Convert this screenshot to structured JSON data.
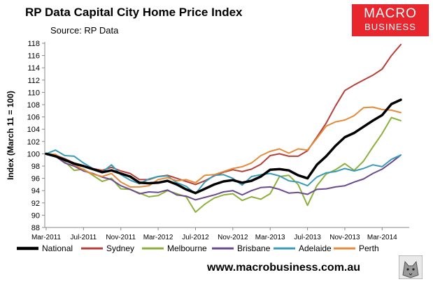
{
  "title": "RP Data Capital City Home Price Index",
  "subtitle": "Source: RP Data",
  "logo": {
    "line1": "MACRO",
    "line2": "BUSINESS",
    "color": "#e8262d"
  },
  "footer_url": "www.macrobusiness.com.au",
  "chart_data": {
    "type": "line",
    "ylabel": "Index (March 11 = 100)",
    "xlabel": "",
    "ylim": [
      88,
      118
    ],
    "yticks": [
      88,
      90,
      92,
      94,
      96,
      98,
      100,
      102,
      104,
      106,
      108,
      110,
      112,
      114,
      116,
      118
    ],
    "xlim": [
      "2011-03",
      "2014-05"
    ],
    "xticks": [
      "Mar-2011",
      "Jul-2011",
      "Nov-2011",
      "Mar-2012",
      "Jul-2012",
      "Nov-2012",
      "Mar-2013",
      "Jul-2013",
      "Nov-2013",
      "Mar-2014"
    ],
    "grid": false,
    "legend_position": "bottom",
    "x": [
      "2011-03",
      "2011-04",
      "2011-05",
      "2011-06",
      "2011-07",
      "2011-08",
      "2011-09",
      "2011-10",
      "2011-11",
      "2011-12",
      "2012-01",
      "2012-02",
      "2012-03",
      "2012-04",
      "2012-05",
      "2012-06",
      "2012-07",
      "2012-08",
      "2012-09",
      "2012-10",
      "2012-11",
      "2012-12",
      "2013-01",
      "2013-02",
      "2013-03",
      "2013-04",
      "2013-05",
      "2013-06",
      "2013-07",
      "2013-08",
      "2013-09",
      "2013-10",
      "2013-11",
      "2013-12",
      "2014-01",
      "2014-02",
      "2014-03",
      "2014-04",
      "2014-05"
    ],
    "series": [
      {
        "name": "National",
        "color": "#000000",
        "width": 3.5,
        "values": [
          100,
          99.6,
          99,
          98.4,
          98,
          97.5,
          97,
          97.3,
          96.8,
          96.3,
          95.3,
          95.2,
          95.3,
          95.6,
          95,
          94.2,
          93.6,
          94.3,
          95,
          95.5,
          95.7,
          95.3,
          95.6,
          96.3,
          97.4,
          97.5,
          97.3,
          96.5,
          96,
          98.2,
          99.6,
          101.3,
          102.7,
          103.4,
          104.4,
          105.4,
          106.3,
          108.1,
          108.8
        ]
      },
      {
        "name": "Sydney",
        "color": "#b5403b",
        "width": 2,
        "values": [
          100,
          99.8,
          99.2,
          98.5,
          98,
          97.6,
          97.3,
          97.8,
          97.2,
          96.8,
          95.8,
          95.8,
          96.3,
          96.5,
          96,
          95.5,
          95,
          95.6,
          96.4,
          97,
          97.4,
          97.1,
          97.5,
          98.3,
          99.7,
          100,
          99.6,
          99.6,
          100.5,
          102.7,
          105,
          107.8,
          110.3,
          111.2,
          112,
          112.8,
          113.8,
          116,
          117.8
        ]
      },
      {
        "name": "Melbourne",
        "color": "#8daf3c",
        "width": 2,
        "values": [
          100,
          99.8,
          98.7,
          97.3,
          97.5,
          96.5,
          95.5,
          96,
          94.3,
          94.2,
          93.6,
          93,
          93.2,
          94,
          93.5,
          93,
          90.5,
          91.8,
          92.8,
          93.3,
          93.5,
          92.4,
          93,
          92.6,
          93.5,
          96.3,
          96.5,
          95,
          91.6,
          94.8,
          96.7,
          97.4,
          98.4,
          97.3,
          98.8,
          101.1,
          103.3,
          105.9,
          105.4
        ]
      },
      {
        "name": "Brisbane",
        "color": "#6a4a8c",
        "width": 2,
        "values": [
          100,
          99.6,
          98.5,
          98,
          97.2,
          96.8,
          96.2,
          95.8,
          94.8,
          94.2,
          93.5,
          93.8,
          93.7,
          94.1,
          93.3,
          93.1,
          92.5,
          92.9,
          93.3,
          93.8,
          94,
          93.3,
          94,
          94.5,
          94.6,
          94.2,
          93.6,
          93.7,
          93.4,
          94.2,
          94.3,
          94.6,
          94.8,
          95.4,
          95.9,
          96.8,
          97.5,
          98.6,
          99.8
        ]
      },
      {
        "name": "Adelaide",
        "color": "#3a9bb8",
        "width": 2,
        "values": [
          100,
          100.6,
          99.7,
          99.6,
          98.5,
          97.6,
          97,
          98.2,
          96.6,
          95.7,
          95.1,
          95.9,
          96.3,
          96.4,
          95.3,
          94.7,
          93.5,
          95.4,
          96.5,
          96.6,
          96,
          94.9,
          96.3,
          96.6,
          96.8,
          96.4,
          95.6,
          95.4,
          94.8,
          96.2,
          96.9,
          97.1,
          97.6,
          97.2,
          97.6,
          98.2,
          97.9,
          99.1,
          99.8
        ]
      },
      {
        "name": "Perth",
        "color": "#e68a3b",
        "width": 2,
        "values": [
          100,
          99.9,
          99,
          98.2,
          97.4,
          96.7,
          96.3,
          96.8,
          95.4,
          94.6,
          94.6,
          94.8,
          95.8,
          96.1,
          95.6,
          95.8,
          95.3,
          96.5,
          96.6,
          97.1,
          97.6,
          97.9,
          98.5,
          99.7,
          100.4,
          100.8,
          100.1,
          100.8,
          100.6,
          102.5,
          104.5,
          105.2,
          105.5,
          106.2,
          107.5,
          107.6,
          107.2,
          107.1,
          106.7
        ]
      }
    ]
  }
}
